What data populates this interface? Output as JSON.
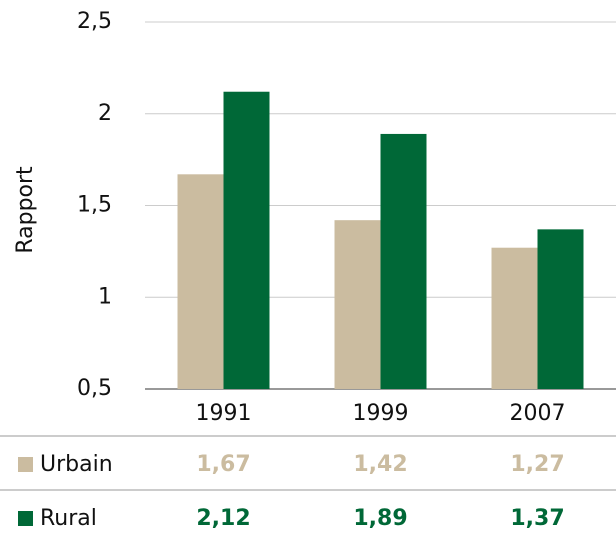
{
  "chart_data": {
    "type": "bar",
    "y_label": "Rapport",
    "categories": [
      "1991",
      "1999",
      "2007"
    ],
    "series": [
      {
        "name": "Urbain",
        "color": "#cbbca0",
        "values": [
          1.67,
          1.42,
          1.27
        ],
        "value_labels": [
          "1,67",
          "1,42",
          "1,27"
        ]
      },
      {
        "name": "Rural",
        "color": "#006837",
        "values": [
          2.12,
          1.89,
          1.37
        ],
        "value_labels": [
          "2,12",
          "1,89",
          "1,37"
        ]
      }
    ],
    "ylim": [
      0.5,
      2.5
    ],
    "yticks": [
      {
        "value": 0.5,
        "label": "0,5"
      },
      1,
      {
        "value": 1.5,
        "label": "1,5"
      },
      2,
      {
        "value": 2.5,
        "label": "2,5"
      }
    ],
    "grid": true
  }
}
